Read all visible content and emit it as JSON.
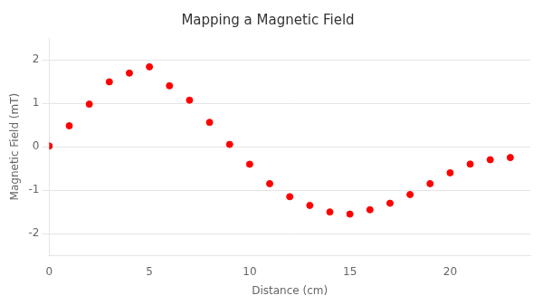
{
  "chart_data": {
    "type": "scatter",
    "title": "Mapping a Magnetic Field",
    "xlabel": "Distance (cm)",
    "ylabel": "Magnetic Field (mT)",
    "x": [
      0,
      1,
      2,
      3,
      4,
      5,
      6,
      7,
      8,
      9,
      10,
      11,
      12,
      13,
      14,
      15,
      16,
      17,
      18,
      19,
      20,
      21,
      22,
      23
    ],
    "values": [
      0.017,
      0.481,
      0.979,
      1.492,
      1.694,
      1.837,
      1.401,
      1.07,
      0.561,
      0.053,
      -0.403,
      -0.85,
      -1.15,
      -1.35,
      -1.5,
      -1.55,
      -1.45,
      -1.3,
      -1.1,
      -0.85,
      -0.6,
      -0.4,
      -0.3,
      -0.25
    ],
    "color": "#ff0000",
    "xlim": [
      0,
      24
    ],
    "ylim": [
      -2.5,
      2.5
    ],
    "xticks": [
      0,
      5,
      10,
      15,
      20
    ],
    "yticks": [
      -2,
      -1,
      0,
      1,
      2
    ],
    "grid": "y"
  }
}
